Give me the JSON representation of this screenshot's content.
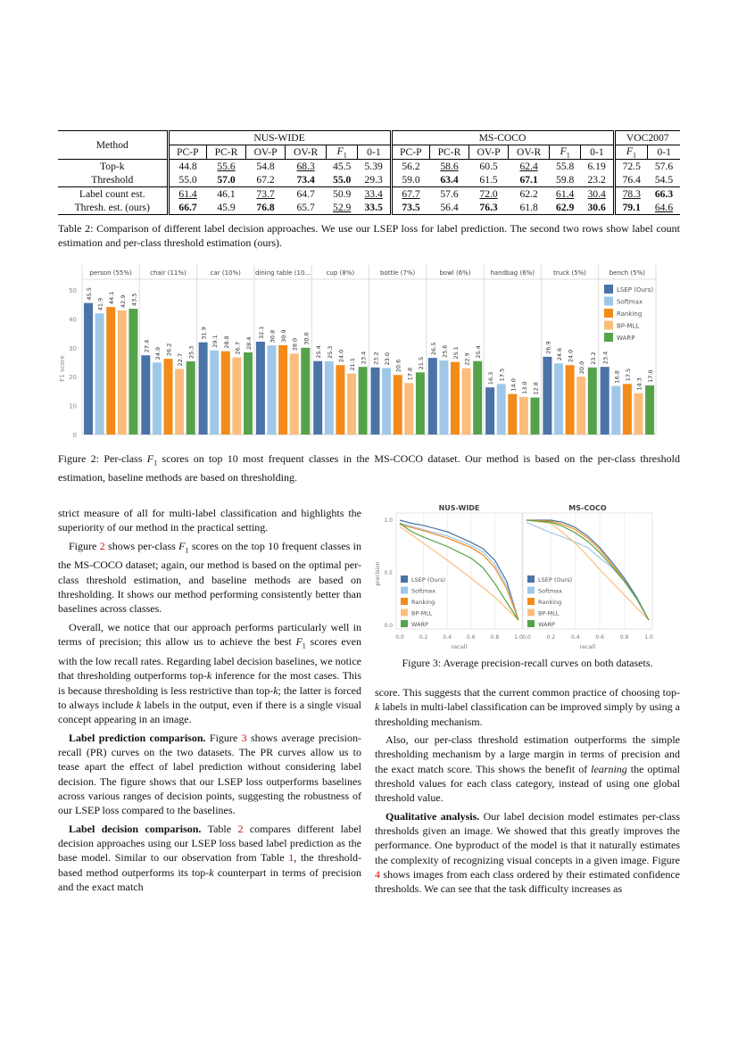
{
  "table2": {
    "method_header": "Method",
    "groups": [
      "NUS-WIDE",
      "MS-COCO",
      "VOC2007"
    ],
    "subheaders": [
      "PC-P",
      "PC-R",
      "OV-P",
      "OV-R",
      "F1",
      "0-1",
      "PC-P",
      "PC-R",
      "OV-P",
      "OV-R",
      "F1",
      "0-1",
      "F1",
      "0-1"
    ],
    "rows": [
      {
        "method": "Top-k",
        "cells": [
          {
            "v": "44.8"
          },
          {
            "v": "55.6",
            "u": true
          },
          {
            "v": "54.8"
          },
          {
            "v": "68.3",
            "u": true
          },
          {
            "v": "45.5"
          },
          {
            "v": "5.39"
          },
          {
            "v": "56.2"
          },
          {
            "v": "58.6",
            "u": true
          },
          {
            "v": "60.5"
          },
          {
            "v": "62.4",
            "u": true
          },
          {
            "v": "55.8"
          },
          {
            "v": "6.19"
          },
          {
            "v": "72.5"
          },
          {
            "v": "57.6"
          }
        ]
      },
      {
        "method": "Threshold",
        "cells": [
          {
            "v": "55.0"
          },
          {
            "v": "57.0",
            "b": true
          },
          {
            "v": "67.2"
          },
          {
            "v": "73.4",
            "b": true
          },
          {
            "v": "55.0",
            "b": true
          },
          {
            "v": "29.3"
          },
          {
            "v": "59.0"
          },
          {
            "v": "63.4",
            "b": true
          },
          {
            "v": "61.5"
          },
          {
            "v": "67.1",
            "b": true
          },
          {
            "v": "59.8"
          },
          {
            "v": "23.2"
          },
          {
            "v": "76.4"
          },
          {
            "v": "54.5"
          }
        ]
      },
      {
        "method": "Label count est.",
        "cells": [
          {
            "v": "61.4",
            "u": true
          },
          {
            "v": "46.1"
          },
          {
            "v": "73.7",
            "u": true
          },
          {
            "v": "64.7"
          },
          {
            "v": "50.9"
          },
          {
            "v": "33.4",
            "u": true
          },
          {
            "v": "67.7",
            "u": true
          },
          {
            "v": "57.6"
          },
          {
            "v": "72.0",
            "u": true
          },
          {
            "v": "62.2"
          },
          {
            "v": "61.4",
            "u": true
          },
          {
            "v": "30.4",
            "u": true
          },
          {
            "v": "78.3",
            "u": true
          },
          {
            "v": "66.3",
            "b": true
          }
        ]
      },
      {
        "method": "Thresh. est. (ours)",
        "cells": [
          {
            "v": "66.7",
            "b": true
          },
          {
            "v": "45.9"
          },
          {
            "v": "76.8",
            "b": true
          },
          {
            "v": "65.7"
          },
          {
            "v": "52.9",
            "u": true
          },
          {
            "v": "33.5",
            "b": true
          },
          {
            "v": "73.5",
            "b": true
          },
          {
            "v": "56.4"
          },
          {
            "v": "76.3",
            "b": true
          },
          {
            "v": "61.8"
          },
          {
            "v": "62.9",
            "b": true
          },
          {
            "v": "30.6",
            "b": true
          },
          {
            "v": "79.1",
            "b": true
          },
          {
            "v": "64.6",
            "u": true
          }
        ]
      }
    ],
    "caption": "Table 2: Comparison of different label decision approaches. We use our LSEP loss for label prediction. The second two rows show label count estimation and per-class threshold estimation (ours)."
  },
  "colors": {
    "LSEP (Ours)": "#4a73a8",
    "Softmax": "#9fc8e8",
    "Ranking": "#f28b1a",
    "BP-MLL": "#fbbd7c",
    "WARP": "#55a24a"
  },
  "chart_data": [
    {
      "type": "bar",
      "title": "",
      "ylabel": "F1 score",
      "xlabel": "",
      "ylim": [
        0,
        50
      ],
      "yticks": [
        0,
        10,
        20,
        30,
        40,
        50
      ],
      "legend": "top-right",
      "categories": [
        "person (55%)",
        "chair (11%)",
        "car (10%)",
        "dining table (10...",
        "cup (8%)",
        "bottle (7%)",
        "bowl (6%)",
        "handbag (6%)",
        "truck (5%)",
        "bench (5%)"
      ],
      "series": [
        {
          "name": "LSEP (Ours)",
          "values": [
            45.5,
            27.4,
            31.9,
            32.1,
            25.4,
            23.2,
            26.5,
            16.3,
            26.9,
            23.4
          ]
        },
        {
          "name": "Softmax",
          "values": [
            41.9,
            24.9,
            29.1,
            30.8,
            25.3,
            23.0,
            25.6,
            17.5,
            24.6,
            16.8
          ]
        },
        {
          "name": "Ranking",
          "values": [
            44.1,
            26.2,
            28.8,
            30.9,
            24.0,
            20.6,
            25.1,
            14.0,
            24.0,
            17.5
          ]
        },
        {
          "name": "BP-MLL",
          "values": [
            42.9,
            22.7,
            26.7,
            28.0,
            21.1,
            17.8,
            22.9,
            13.0,
            20.0,
            14.3
          ]
        },
        {
          "name": "WARP",
          "values": [
            43.5,
            25.3,
            28.4,
            30.0,
            23.4,
            21.5,
            25.4,
            12.8,
            23.2,
            17.0
          ]
        }
      ]
    },
    {
      "type": "line",
      "title": "NUS-WIDE",
      "xlabel": "recall",
      "ylabel": "precision",
      "xlim": [
        0,
        1
      ],
      "ylim": [
        0,
        1
      ],
      "xticks": [
        "0.0",
        "0.2",
        "0.4",
        "0.6",
        "0.8",
        "1.0"
      ],
      "yticks": [
        "0.0",
        "0.5",
        "1.0"
      ],
      "legend": "bottom-left",
      "series": [
        {
          "name": "LSEP (Ours)",
          "points": [
            [
              0,
              1.0
            ],
            [
              0.1,
              0.97
            ],
            [
              0.2,
              0.95
            ],
            [
              0.3,
              0.92
            ],
            [
              0.4,
              0.89
            ],
            [
              0.5,
              0.84
            ],
            [
              0.6,
              0.79
            ],
            [
              0.7,
              0.73
            ],
            [
              0.8,
              0.62
            ],
            [
              0.9,
              0.42
            ],
            [
              1.0,
              0.05
            ]
          ]
        },
        {
          "name": "Softmax",
          "points": [
            [
              0,
              0.97
            ],
            [
              0.2,
              0.91
            ],
            [
              0.4,
              0.85
            ],
            [
              0.6,
              0.76
            ],
            [
              0.7,
              0.7
            ],
            [
              0.8,
              0.58
            ],
            [
              0.9,
              0.38
            ],
            [
              1.0,
              0.05
            ]
          ]
        },
        {
          "name": "Ranking",
          "points": [
            [
              0,
              0.96
            ],
            [
              0.2,
              0.9
            ],
            [
              0.4,
              0.83
            ],
            [
              0.6,
              0.74
            ],
            [
              0.7,
              0.67
            ],
            [
              0.8,
              0.55
            ],
            [
              0.9,
              0.35
            ],
            [
              1.0,
              0.05
            ]
          ]
        },
        {
          "name": "BP-MLL",
          "points": [
            [
              0,
              0.94
            ],
            [
              0.1,
              0.86
            ],
            [
              0.2,
              0.78
            ],
            [
              0.4,
              0.62
            ],
            [
              0.6,
              0.45
            ],
            [
              0.8,
              0.27
            ],
            [
              1.0,
              0.05
            ]
          ]
        },
        {
          "name": "WARP",
          "points": [
            [
              0,
              0.97
            ],
            [
              0.1,
              0.89
            ],
            [
              0.2,
              0.84
            ],
            [
              0.4,
              0.75
            ],
            [
              0.6,
              0.64
            ],
            [
              0.7,
              0.55
            ],
            [
              0.8,
              0.4
            ],
            [
              0.9,
              0.22
            ],
            [
              1.0,
              0.05
            ]
          ]
        }
      ]
    },
    {
      "type": "line",
      "title": "MS-COCO",
      "xlabel": "recall",
      "ylabel": "",
      "xlim": [
        0,
        1
      ],
      "ylim": [
        0,
        1
      ],
      "xticks": [
        "0.0",
        "0.2",
        "0.4",
        "0.6",
        "0.8",
        "1.0"
      ],
      "yticks": [],
      "legend": "bottom-left",
      "series": [
        {
          "name": "LSEP (Ours)",
          "points": [
            [
              0,
              1.0
            ],
            [
              0.2,
              1.0
            ],
            [
              0.3,
              0.98
            ],
            [
              0.4,
              0.93
            ],
            [
              0.5,
              0.85
            ],
            [
              0.6,
              0.74
            ],
            [
              0.7,
              0.6
            ],
            [
              0.8,
              0.45
            ],
            [
              0.9,
              0.27
            ],
            [
              1.0,
              0.05
            ]
          ]
        },
        {
          "name": "Softmax",
          "points": [
            [
              0,
              0.98
            ],
            [
              0.1,
              0.93
            ],
            [
              0.2,
              0.88
            ],
            [
              0.3,
              0.84
            ],
            [
              0.4,
              0.79
            ],
            [
              0.5,
              0.74
            ],
            [
              0.6,
              0.64
            ],
            [
              0.7,
              0.55
            ],
            [
              0.8,
              0.42
            ],
            [
              0.9,
              0.25
            ],
            [
              1.0,
              0.05
            ]
          ]
        },
        {
          "name": "Ranking",
          "points": [
            [
              0,
              1.0
            ],
            [
              0.2,
              0.99
            ],
            [
              0.3,
              0.96
            ],
            [
              0.4,
              0.91
            ],
            [
              0.5,
              0.83
            ],
            [
              0.6,
              0.72
            ],
            [
              0.7,
              0.58
            ],
            [
              0.8,
              0.43
            ],
            [
              0.9,
              0.26
            ],
            [
              1.0,
              0.05
            ]
          ]
        },
        {
          "name": "BP-MLL",
          "points": [
            [
              0,
              1.0
            ],
            [
              0.2,
              0.97
            ],
            [
              0.3,
              0.88
            ],
            [
              0.4,
              0.78
            ],
            [
              0.5,
              0.66
            ],
            [
              0.6,
              0.53
            ],
            [
              0.7,
              0.41
            ],
            [
              0.8,
              0.29
            ],
            [
              0.9,
              0.17
            ],
            [
              1.0,
              0.05
            ]
          ]
        },
        {
          "name": "WARP",
          "points": [
            [
              0,
              1.0
            ],
            [
              0.2,
              0.98
            ],
            [
              0.3,
              0.94
            ],
            [
              0.4,
              0.88
            ],
            [
              0.5,
              0.8
            ],
            [
              0.6,
              0.69
            ],
            [
              0.7,
              0.56
            ],
            [
              0.8,
              0.42
            ],
            [
              0.9,
              0.26
            ],
            [
              1.0,
              0.05
            ]
          ]
        }
      ]
    }
  ],
  "fig2_caption": [
    [
      "Figure 2: Per-class ",
      ""
    ],
    [
      "F",
      "i"
    ],
    [
      "1",
      "sub"
    ],
    [
      " scores on top 10 most frequent classes in the MS-COCO dataset. Our method is based on the per-class threshold estimation, baseline methods are based on thresholding.",
      ""
    ]
  ],
  "fig3_caption": [
    [
      "Figure 3: Average precision-recall curves on both datasets.",
      ""
    ]
  ],
  "left_column": [
    [
      [
        "strict measure of all for multi-label classification and highlights the superiority of our method in the practical setting.",
        ""
      ]
    ],
    [
      [
        "Figure ",
        ""
      ],
      [
        "2",
        "r"
      ],
      [
        " shows per-class ",
        ""
      ],
      [
        "F",
        "i"
      ],
      [
        "1",
        "sub"
      ],
      [
        " scores on the top 10 frequent classes in the MS-COCO dataset; again, our method is based on the optimal per-class threshold estimation, and baseline methods are based on thresholding. It shows our method performing consistently better than baselines across classes.",
        ""
      ]
    ],
    [
      [
        "Overall, we notice that our approach performs particularly well in terms of precision; this allow us to achieve the best ",
        ""
      ],
      [
        "F",
        "i"
      ],
      [
        "1",
        "sub"
      ],
      [
        " scores even with the low recall rates. Regarding label decision baselines, we notice that thresholding outperforms top-",
        ""
      ],
      [
        "k",
        "i"
      ],
      [
        " inference for the most cases. This is because thresholding is less restrictive than top-",
        ""
      ],
      [
        "k",
        "i"
      ],
      [
        "; the latter is forced to always include ",
        ""
      ],
      [
        "k",
        "i"
      ],
      [
        " labels in the output, even if there is a single visual concept appearing in an image.",
        ""
      ]
    ],
    [
      [
        "Label prediction comparison.",
        "b"
      ],
      [
        " Figure ",
        ""
      ],
      [
        "3",
        "r"
      ],
      [
        " shows average precision-recall (PR) curves on the two datasets. The PR curves allow us to tease apart the effect of label prediction without considering label decision. The figure shows that our LSEP loss outperforms baselines across various ranges of decision points, suggesting the robustness of our LSEP loss compared to the baselines.",
        ""
      ]
    ],
    [
      [
        "Label decision comparison.",
        "b"
      ],
      [
        " Table ",
        ""
      ],
      [
        "2",
        "r"
      ],
      [
        " compares different label decision approaches using our LSEP loss based label prediction as the base model. Similar to our observation from Table ",
        ""
      ],
      [
        "1",
        "r"
      ],
      [
        ", the threshold-based method outperforms its top-",
        ""
      ],
      [
        "k",
        "i"
      ],
      [
        " counterpart in terms of precision and the exact match",
        ""
      ]
    ]
  ],
  "right_column": [
    [
      [
        "score. This suggests that the current common practice of choosing top-",
        ""
      ],
      [
        "k",
        "i"
      ],
      [
        " labels in multi-label classification can be improved simply by using a thresholding mechanism.",
        ""
      ]
    ],
    [
      [
        "Also, our per-class threshold estimation outperforms the simple thresholding mechanism by a large margin in terms of precision and the exact match score. This shows the benefit of ",
        ""
      ],
      [
        "learning",
        "i"
      ],
      [
        " the optimal threshold values for each class category, instead of using one global threshold value.",
        ""
      ]
    ],
    [
      [
        "Qualitative analysis.",
        "b"
      ],
      [
        " Our label decision model estimates per-class thresholds given an image. We showed that this greatly improves the performance. One byproduct of the model is that it naturally estimates the complexity of recognizing visual concepts in a given image. Figure ",
        ""
      ],
      [
        "4",
        "r"
      ],
      [
        " shows images from each class ordered by their estimated confidence thresholds. We can see that the task difficulty increases as",
        ""
      ]
    ]
  ]
}
